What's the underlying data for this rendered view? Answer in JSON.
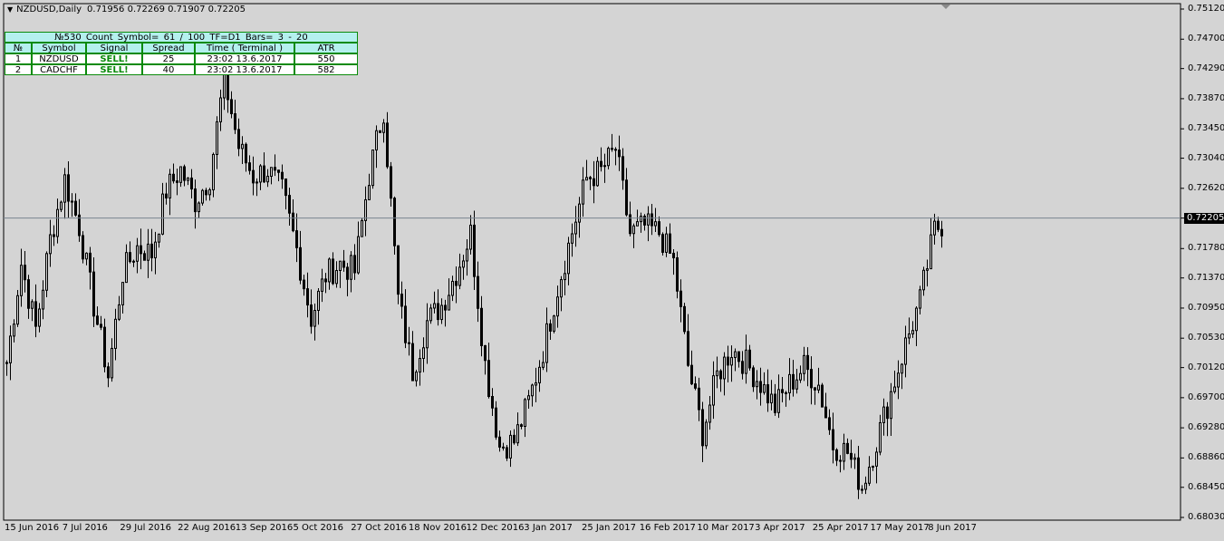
{
  "header": {
    "symbol": "NZDUSD,Daily",
    "ohlc": "0.71956 0.72269 0.71907 0.72205"
  },
  "table": {
    "caption": "№530   Count Symbol= 61 / 100    TF=D1    Bars= 3 - 20",
    "columns": [
      "№",
      "Symbol",
      "Signal",
      "Spread",
      "Time ( Terminal )",
      "ATR"
    ],
    "rows": [
      [
        "1",
        "NZDUSD",
        "SELL!",
        "25",
        "23:02 13.6.2017",
        "550"
      ],
      [
        "2",
        "CADCHF",
        "SELL!",
        "40",
        "23:02 13.6.2017",
        "582"
      ]
    ]
  },
  "colors": {
    "background": "#d4d4d4",
    "table_border": "#0a8a0a",
    "table_header": "#b4f0ee",
    "signal": "#0a8a0a",
    "bear_candle": "#000000",
    "bull_candle": "#d4d4d4",
    "price_line": "#7a8490"
  },
  "chart_data": {
    "type": "candlestick",
    "symbol": "NZDUSD",
    "timeframe": "Daily",
    "y_ticks": [
      "0.75120",
      "0.74700",
      "0.74290",
      "0.73870",
      "0.73450",
      "0.73040",
      "0.72620",
      "0.72205",
      "0.71780",
      "0.71370",
      "0.70950",
      "0.70530",
      "0.70120",
      "0.69700",
      "0.69280",
      "0.68860",
      "0.68450",
      "0.68030"
    ],
    "ylim": [
      0.6803,
      0.7512
    ],
    "current_price": "0.72205",
    "x_ticks": [
      "15 Jun 2016",
      "7 Jul 2016",
      "29 Jul 2016",
      "22 Aug 2016",
      "13 Sep 2016",
      "5 Oct 2016",
      "27 Oct 2016",
      "18 Nov 2016",
      "12 Dec 2016",
      "3 Jan 2017",
      "25 Jan 2017",
      "16 Feb 2017",
      "10 Mar 2017",
      "3 Apr 2017",
      "25 Apr 2017",
      "17 May 2017",
      "8 Jun 2017"
    ],
    "approx_closes_every_4_bars": [
      0.7019,
      0.7157,
      0.7066,
      0.7191,
      0.7274,
      0.7209,
      0.7099,
      0.7001,
      0.7144,
      0.718,
      0.7171,
      0.7259,
      0.7288,
      0.7244,
      0.7278,
      0.7417,
      0.732,
      0.7279,
      0.7288,
      0.7258,
      0.7177,
      0.7081,
      0.7141,
      0.7157,
      0.7146,
      0.7281,
      0.7372,
      0.7108,
      0.7007,
      0.7076,
      0.7099,
      0.7144,
      0.7199,
      0.7017,
      0.6902,
      0.6909,
      0.6964,
      0.7036,
      0.7123,
      0.7201,
      0.7276,
      0.7286,
      0.7317,
      0.7199,
      0.7209,
      0.72,
      0.7159,
      0.7015,
      0.6921,
      0.7001,
      0.7038,
      0.7018,
      0.699,
      0.6957,
      0.6989,
      0.7013,
      0.6988,
      0.6904,
      0.6894,
      0.6846,
      0.6909,
      0.6977,
      0.7044,
      0.7105,
      0.7204,
      0.72205
    ],
    "last_bar": {
      "open": 0.71956,
      "high": 0.72269,
      "low": 0.71907,
      "close": 0.72205
    }
  }
}
